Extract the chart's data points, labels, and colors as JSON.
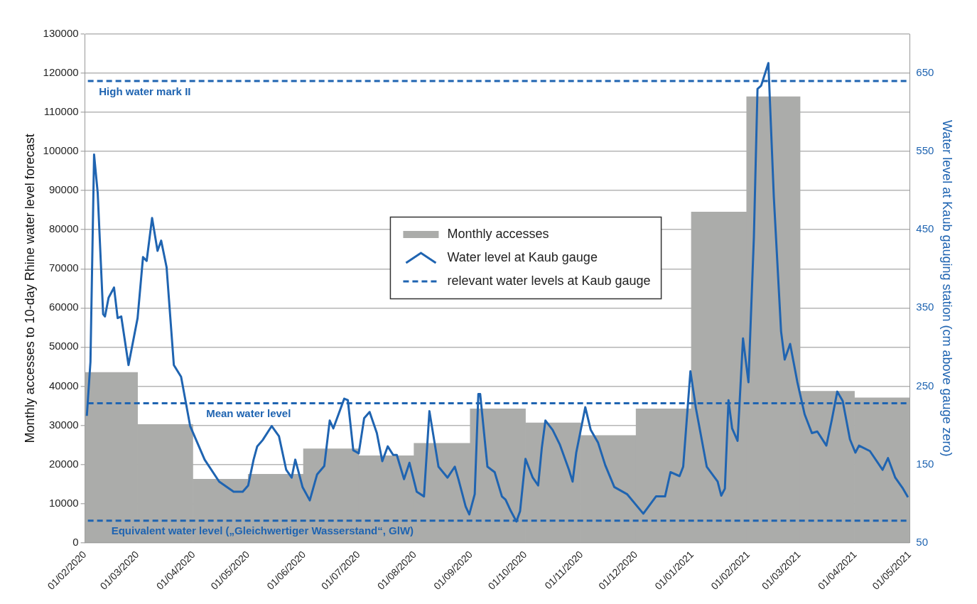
{
  "chart_data": {
    "type": "bar",
    "ylabel": "Monthly accesses to 10-day Rhine water level forecast",
    "y2label": "Water level at Kaub gauging station (cm above gauge zero)",
    "series": [
      {
        "name": "Monthly accesses",
        "color": "#abacaa",
        "x": [
          "2020-02-15",
          "2020-03-16",
          "2020-04-16",
          "2020-05-16",
          "2020-06-16",
          "2020-07-16",
          "2020-08-16",
          "2020-09-16",
          "2020-10-16",
          "2020-11-16",
          "2020-12-16",
          "2021-01-16",
          "2021-02-15",
          "2021-03-16",
          "2021-04-16"
        ],
        "values": [
          43500,
          30200,
          16200,
          17500,
          24000,
          22200,
          25400,
          34200,
          30600,
          27400,
          34200,
          84500,
          114000,
          38700,
          37000
        ]
      },
      {
        "name": "Water level at Kaub gauge",
        "type": "line",
        "axis": "y2",
        "color": "#1f64b1",
        "x": [
          "2020-02-02",
          "2020-02-04",
          "2020-02-06",
          "2020-02-08",
          "2020-02-11",
          "2020-02-12",
          "2020-02-14",
          "2020-02-17",
          "2020-02-19",
          "2020-02-21",
          "2020-02-25",
          "2020-03-01",
          "2020-03-04",
          "2020-03-06",
          "2020-03-09",
          "2020-03-12",
          "2020-03-14",
          "2020-03-17",
          "2020-03-21",
          "2020-03-25",
          "2020-03-30",
          "2020-04-07",
          "2020-04-15",
          "2020-04-23",
          "2020-04-28",
          "2020-05-01",
          "2020-05-04",
          "2020-05-06",
          "2020-05-09",
          "2020-05-14",
          "2020-05-18",
          "2020-05-22",
          "2020-05-25",
          "2020-05-27",
          "2020-05-31",
          "2020-06-04",
          "2020-06-08",
          "2020-06-12",
          "2020-06-15",
          "2020-06-17",
          "2020-06-20",
          "2020-06-23",
          "2020-06-25",
          "2020-06-28",
          "2020-07-01",
          "2020-07-04",
          "2020-07-07",
          "2020-07-11",
          "2020-07-14",
          "2020-07-17",
          "2020-07-20",
          "2020-07-22",
          "2020-07-26",
          "2020-07-29",
          "2020-08-02",
          "2020-08-06",
          "2020-08-09",
          "2020-08-14",
          "2020-08-19",
          "2020-08-23",
          "2020-08-25",
          "2020-08-29",
          "2020-08-31",
          "2020-09-03",
          "2020-09-05",
          "2020-09-06",
          "2020-09-10",
          "2020-09-14",
          "2020-09-18",
          "2020-09-20",
          "2020-09-23",
          "2020-09-26",
          "2020-09-28",
          "2020-10-01",
          "2020-10-05",
          "2020-10-08",
          "2020-10-10",
          "2020-10-12",
          "2020-10-16",
          "2020-10-20",
          "2020-10-25",
          "2020-10-27",
          "2020-10-29",
          "2020-11-03",
          "2020-11-06",
          "2020-11-10",
          "2020-11-14",
          "2020-11-19",
          "2020-11-26",
          "2020-12-05",
          "2020-12-12",
          "2020-12-17",
          "2020-12-20",
          "2020-12-25",
          "2020-12-27",
          "2020-12-31",
          "2021-01-03",
          "2021-01-09",
          "2021-01-15",
          "2021-01-17",
          "2021-01-19",
          "2021-01-21",
          "2021-01-23",
          "2021-01-26",
          "2021-01-29",
          "2021-02-01",
          "2021-02-04",
          "2021-02-06",
          "2021-02-08",
          "2021-02-12",
          "2021-02-15",
          "2021-02-19",
          "2021-02-21",
          "2021-02-24",
          "2021-02-28",
          "2021-03-04",
          "2021-03-08",
          "2021-03-11",
          "2021-03-16",
          "2021-03-19",
          "2021-03-22",
          "2021-03-25",
          "2021-03-29",
          "2021-04-01",
          "2021-04-03",
          "2021-04-09",
          "2021-04-16",
          "2021-04-19",
          "2021-04-23",
          "2021-04-27",
          "2021-04-30"
        ],
        "values": [
          212,
          281,
          546,
          497,
          342,
          339,
          363,
          376,
          337,
          339,
          277,
          337,
          415,
          410,
          465,
          423,
          436,
          402,
          277,
          262,
          199,
          156,
          128,
          115,
          115,
          123,
          156,
          173,
          181,
          199,
          186,
          143,
          133,
          156,
          121,
          104,
          137,
          148,
          206,
          196,
          215,
          234,
          232,
          168,
          164,
          209,
          217,
          190,
          154,
          173,
          162,
          162,
          131,
          152,
          115,
          109,
          218,
          147,
          133,
          147,
          131,
          96,
          86,
          112,
          240,
          240,
          147,
          140,
          109,
          105,
          90,
          77,
          90,
          157,
          133,
          123,
          171,
          206,
          194,
          175,
          143,
          128,
          165,
          223,
          194,
          178,
          149,
          121,
          112,
          87,
          109,
          109,
          140,
          135,
          147,
          269,
          222,
          147,
          128,
          110,
          119,
          232,
          196,
          180,
          311,
          255,
          440,
          630,
          634,
          663,
          492,
          320,
          284,
          304,
          255,
          214,
          190,
          192,
          174,
          207,
          243,
          231,
          182,
          165,
          174,
          167,
          143,
          158,
          133,
          120,
          108
        ]
      }
    ],
    "xlim": [
      "2020-02-01",
      "2021-05-01"
    ],
    "xticks": [
      {
        "value": "2020-02-01",
        "label": "01/02/2020"
      },
      {
        "value": "2020-03-01",
        "label": "01/03/2020"
      },
      {
        "value": "2020-04-01",
        "label": "01/04/2020"
      },
      {
        "value": "2020-05-01",
        "label": "01/05/2020"
      },
      {
        "value": "2020-06-01",
        "label": "01/06/2020"
      },
      {
        "value": "2020-07-01",
        "label": "01/07/2020"
      },
      {
        "value": "2020-08-01",
        "label": "01/08/2020"
      },
      {
        "value": "2020-09-01",
        "label": "01/09/2020"
      },
      {
        "value": "2020-10-01",
        "label": "01/10/2020"
      },
      {
        "value": "2020-11-01",
        "label": "01/11/2020"
      },
      {
        "value": "2020-12-01",
        "label": "01/12/2020"
      },
      {
        "value": "2021-01-01",
        "label": "01/01/2021"
      },
      {
        "value": "2021-02-01",
        "label": "01/02/2021"
      },
      {
        "value": "2021-03-01",
        "label": "01/03/2021"
      },
      {
        "value": "2021-04-01",
        "label": "01/04/2021"
      },
      {
        "value": "2021-05-01",
        "label": "01/05/2021"
      }
    ],
    "ylim": [
      0,
      130000
    ],
    "yticks": [
      0,
      10000,
      20000,
      30000,
      40000,
      50000,
      60000,
      70000,
      80000,
      90000,
      100000,
      110000,
      120000,
      130000
    ],
    "y2lim": [
      50,
      700
    ],
    "y2ticks": [
      50,
      150,
      250,
      350,
      450,
      550,
      650
    ],
    "ref_lines": [
      {
        "axis": "y2",
        "value": 640,
        "label": "High water mark II",
        "color": "#1f64b1",
        "line_style": "dashed"
      },
      {
        "axis": "y2",
        "value": 228,
        "label": "Mean water level",
        "color": "#1f64b1",
        "line_style": "dashed"
      },
      {
        "axis": "y2",
        "value": 78,
        "label": "Equivalent water level („Gleichwertiger Wasserstand“, GlW)",
        "color": "#1f64b1",
        "line_style": "dashed"
      }
    ],
    "annotations": [
      "relevant water levels at Kaub gauge"
    ],
    "grid": "y",
    "legend": "top"
  }
}
